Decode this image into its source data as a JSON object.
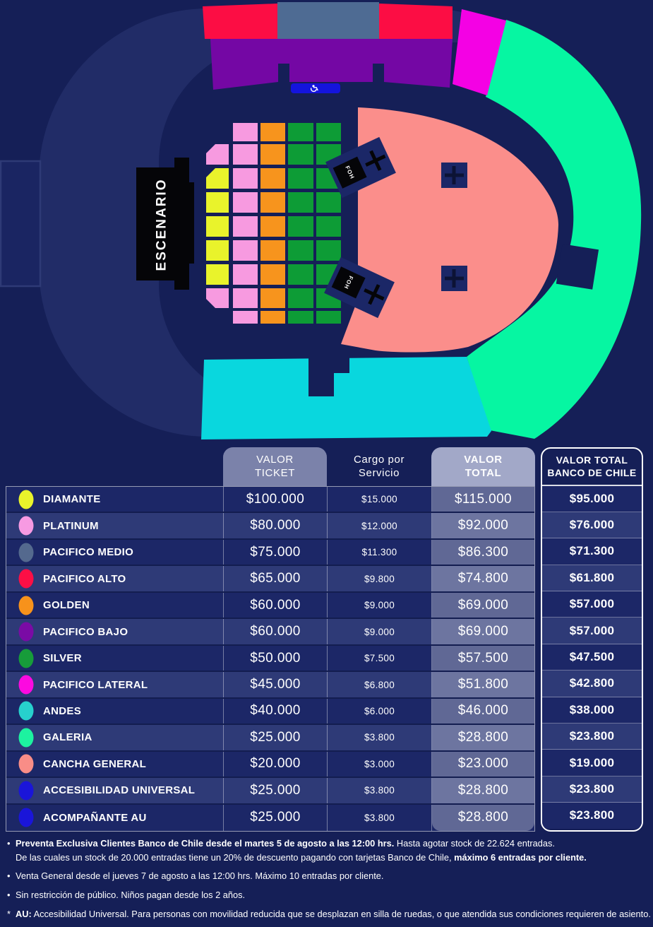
{
  "map": {
    "stage_label": "ESCENARIO",
    "foh_label": "FOH",
    "background": "#151f57",
    "ring_color": "#212c67",
    "au_badge_color": "#1414dd",
    "sections": {
      "diamante": {
        "label": "DIAMANTE",
        "color": "#e9f32b"
      },
      "platinum": {
        "label": "PLATINUM",
        "color": "#f79ae0"
      },
      "pacifico_medio": {
        "label": "PACIFICO MEDIO",
        "color": "#4e6b93"
      },
      "pacifico_alto": {
        "label": "PACIFICO ALTO",
        "color": "#fc0d44"
      },
      "golden": {
        "label": "GOLDEN",
        "color": "#f7941d"
      },
      "pacifico_bajo": {
        "label": "PACIFICO BAJO",
        "color": "#7407a4"
      },
      "silver": {
        "label": "SILVER",
        "color": "#0d9c36"
      },
      "pacifico_lateral": {
        "label": "PACIFICO LATERAL",
        "color": "#f401e4"
      },
      "andes": {
        "label": "ANDES",
        "color": "#09d7de"
      },
      "galeria": {
        "label": "GALERIA",
        "color": "#06f6a2"
      },
      "cancha_general": {
        "label": "CANCHA GENERAL",
        "color": "#fb8e8b"
      }
    }
  },
  "table": {
    "headers": {
      "ticket": "VALOR\nTICKET",
      "cargo": "Cargo por\nServicio",
      "total": "VALOR\nTOTAL",
      "banco": "VALOR TOTAL\nBANCO DE CHILE"
    },
    "rows": [
      {
        "name": "DIAMANTE",
        "color": "#e9f32b",
        "ticket": "$100.000",
        "cargo": "$15.000",
        "total": "$115.000",
        "banco": "$95.000"
      },
      {
        "name": "PLATINUM",
        "color": "#f79ae2",
        "ticket": "$80.000",
        "cargo": "$12.000",
        "total": "$92.000",
        "banco": "$76.000"
      },
      {
        "name": "PACIFICO MEDIO",
        "color": "#54698e",
        "ticket": "$75.000",
        "cargo": "$11.300",
        "total": "$86.300",
        "banco": "$71.300"
      },
      {
        "name": "PACIFICO ALTO",
        "color": "#fc0f45",
        "ticket": "$65.000",
        "cargo": "$9.800",
        "total": "$74.800",
        "banco": "$61.800"
      },
      {
        "name": "GOLDEN",
        "color": "#f7921b",
        "ticket": "$60.000",
        "cargo": "$9.000",
        "total": "$69.000",
        "banco": "$57.000"
      },
      {
        "name": "PACIFICO BAJO",
        "color": "#7a0ba5",
        "ticket": "$60.000",
        "cargo": "$9.000",
        "total": "$69.000",
        "banco": "$57.000"
      },
      {
        "name": "SILVER",
        "color": "#179c3a",
        "ticket": "$50.000",
        "cargo": "$7.500",
        "total": "$57.500",
        "banco": "$47.500"
      },
      {
        "name": "PACIFICO LATERAL",
        "color": "#fc0ae0",
        "ticket": "$45.000",
        "cargo": "$6.800",
        "total": "$51.800",
        "banco": "$42.800"
      },
      {
        "name": "ANDES",
        "color": "#27d1cd",
        "ticket": "$40.000",
        "cargo": "$6.000",
        "total": "$46.000",
        "banco": "$38.000"
      },
      {
        "name": "GALERIA",
        "color": "#1df2a0",
        "ticket": "$25.000",
        "cargo": "$3.800",
        "total": "$28.800",
        "banco": "$23.800"
      },
      {
        "name": "CANCHA GENERAL",
        "color": "#f98d87",
        "ticket": "$20.000",
        "cargo": "$3.000",
        "total": "$23.000",
        "banco": "$19.000"
      },
      {
        "name": "ACCESIBILIDAD UNIVERSAL",
        "color": "#1a15d9",
        "ticket": "$25.000",
        "cargo": "$3.800",
        "total": "$28.800",
        "banco": "$23.800"
      },
      {
        "name": "ACOMPAÑANTE AU",
        "color": "#1a15d9",
        "ticket": "$25.000",
        "cargo": "$3.800",
        "total": "$28.800",
        "banco": "$23.800"
      }
    ]
  },
  "notes": [
    {
      "bullet": "•",
      "tight": true,
      "parts": [
        {
          "text": "Preventa Exclusiva Clientes Banco de Chile desde el martes 5 de agosto a las 12:00 hrs.",
          "bold": true
        },
        {
          "text": " Hasta agotar stock de 22.624 entradas.",
          "bold": false
        }
      ]
    },
    {
      "bullet": "",
      "indent": true,
      "parts": [
        {
          "text": "De las cuales un stock de 20.000 entradas tiene un 20% de descuento pagando con tarjetas Banco de Chile, ",
          "bold": false
        },
        {
          "text": "máximo 6 entradas por cliente.",
          "bold": true
        }
      ]
    },
    {
      "bullet": "•",
      "parts": [
        {
          "text": "Venta General desde el jueves 7 de agosto a las 12:00 hrs. Máximo 10 entradas por cliente.",
          "bold": false
        }
      ]
    },
    {
      "bullet": "•",
      "parts": [
        {
          "text": "Sin restricción de público. Niños pagan desde los 2 años.",
          "bold": false
        }
      ]
    },
    {
      "bullet": "*",
      "parts": [
        {
          "text": "AU:",
          "bold": true
        },
        {
          "text": " Accesibilidad Universal. Para personas con movilidad reducida que se desplazan en silla de ruedas, o que atendida sus condiciones requieren de asiento.",
          "bold": false
        }
      ]
    }
  ]
}
